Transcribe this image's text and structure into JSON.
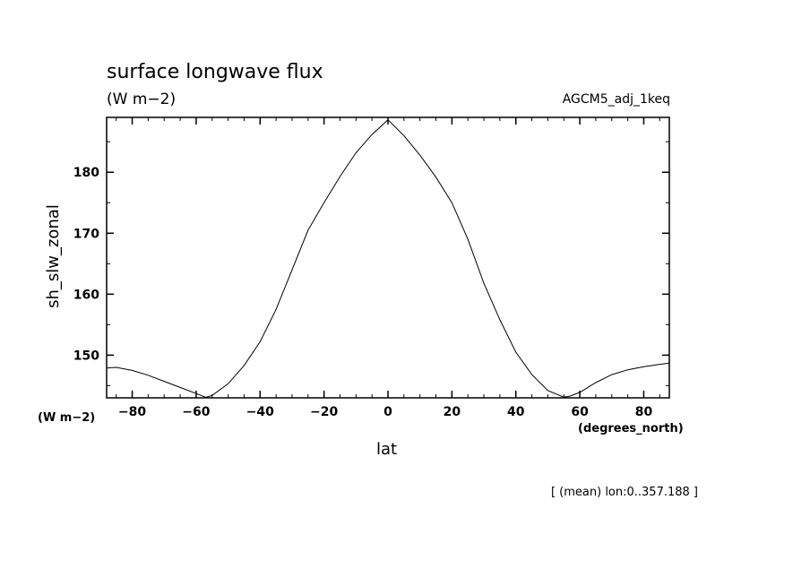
{
  "chart_data": {
    "type": "line",
    "title": "surface longwave flux",
    "units_label": "(W m−2)",
    "experiment": "AGCM5_adj_1keq",
    "ylabel": "sh_slw_zonal",
    "y_units": "(W m−2)",
    "xlabel": "lat",
    "x_units": "(degrees_north)",
    "footer": "[ (mean) lon:0..357.188 ]",
    "xlim": [
      -88,
      88
    ],
    "ylim": [
      143,
      189
    ],
    "xticks": [
      -80,
      -60,
      -40,
      -20,
      0,
      20,
      40,
      60,
      80
    ],
    "xtick_labels": [
      "−80",
      "−60",
      "−40",
      "−20",
      "0",
      "20",
      "40",
      "60",
      "80"
    ],
    "yticks": [
      150,
      160,
      170,
      180
    ],
    "yticks_minor": [
      145,
      155,
      165,
      175,
      185
    ],
    "ytick_labels": [
      "150",
      "160",
      "170",
      "180"
    ],
    "grid": false,
    "series": [
      {
        "x": [
          -88,
          -85,
          -80,
          -75,
          -70,
          -65,
          -60,
          -57,
          -55,
          -50,
          -45,
          -40,
          -35,
          -30,
          -25,
          -20,
          -15,
          -10,
          -5,
          0,
          5,
          10,
          15,
          20,
          25,
          30,
          35,
          40,
          45,
          50,
          55,
          57,
          60,
          65,
          70,
          75,
          80,
          85,
          88
        ],
        "y": [
          147.9,
          148.0,
          147.5,
          146.7,
          145.7,
          144.7,
          143.7,
          143.1,
          143.4,
          145.3,
          148.3,
          152.2,
          157.5,
          164.0,
          170.5,
          175.0,
          179.3,
          183.2,
          186.2,
          188.6,
          186.0,
          182.8,
          179.2,
          175.0,
          169.0,
          161.8,
          155.8,
          150.5,
          146.8,
          144.2,
          143.1,
          143.3,
          143.9,
          145.5,
          146.8,
          147.6,
          148.1,
          148.5,
          148.7
        ]
      }
    ]
  }
}
